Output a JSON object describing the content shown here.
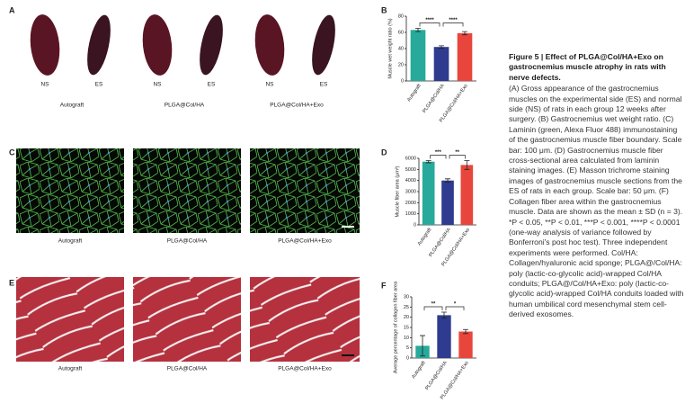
{
  "panel_labels": [
    "A",
    "B",
    "C",
    "D",
    "E",
    "F"
  ],
  "groups": [
    "Autograft",
    "PLGA@Col/HA",
    "PLGA@Col/HA+Exo"
  ],
  "side_labels": [
    "NS",
    "ES"
  ],
  "chart_data": [
    {
      "type": "bar",
      "y_label": "Muscle wet weight ratio (%)",
      "categories": [
        "Autograft",
        "PLGA@Col/HA",
        "PLGA@Col/HA+Exo"
      ],
      "values": [
        63,
        42,
        59
      ],
      "errors": [
        2,
        1.5,
        2
      ],
      "colors": [
        "#27a99b",
        "#2e3b8f",
        "#e8463d"
      ],
      "ylim": [
        0,
        80
      ],
      "yticks": [
        0,
        20,
        40,
        60,
        80
      ],
      "annotations": [
        "****",
        "****"
      ]
    },
    {
      "type": "bar",
      "y_label": "Muscle fiber area (μm²)",
      "categories": [
        "Autograft",
        "PLGA@Col/HA",
        "PLGA@Col/HA+Exo"
      ],
      "values": [
        5700,
        4000,
        5400
      ],
      "errors": [
        100,
        150,
        400
      ],
      "colors": [
        "#27a99b",
        "#2e3b8f",
        "#e8463d"
      ],
      "ylim": [
        0,
        6000
      ],
      "yticks": [
        0,
        1000,
        2000,
        3000,
        4000,
        5000,
        6000
      ],
      "annotations": [
        "***",
        "**"
      ]
    },
    {
      "type": "bar",
      "y_label": "Average percentage of collagen fiber area",
      "categories": [
        "Autograft",
        "PLGA@Col/HA",
        "PLGA@Col/HA+Exo"
      ],
      "values": [
        6,
        21,
        13
      ],
      "errors": [
        5,
        1.5,
        1
      ],
      "colors": [
        "#27a99b",
        "#2e3b8f",
        "#e8463d"
      ],
      "ylim": [
        0,
        30
      ],
      "yticks": [
        0,
        5,
        10,
        15,
        20,
        25,
        30
      ],
      "annotations": [
        "**",
        "*"
      ]
    }
  ],
  "caption": {
    "title": "Figure 5 | Effect of PLGA@Col/HA+Exo on gastrocnemius muscle atrophy in rats with nerve defects.",
    "body": "(A) Gross appearance of the gastrocnemius muscles on the experimental side (ES) and normal side (NS) of rats in each group 12 weeks after surgery. (B) Gastrocnemius wet weight ratio. (C) Laminin (green, Alexa Fluor 488) immunostaining of the gastrocnemius muscle fiber boundary. Scale bar: 100 μm. (D) Gastrocnemius muscle fiber cross-sectional area calculated from laminin staining images. (E) Masson trichrome staining images of gastrocnemius muscle sections from the ES of rats in each group. Scale bar: 50 μm. (F) Collagen fiber area within the gastrocnemius muscle. Data are shown as the mean ± SD (n = 3). *P < 0.05, **P < 0.01, ***P < 0.001, ****P < 0.0001 (one-way analysis of variance followed by Bonferroni's post hoc test). Three independent experiments were performed. Col/HA: Collagen/hyaluronic acid sponge; PLGA@/Col/HA: poly (lactic-co-glycolic acid)-wrapped Col/HA conduits; PLGA@/Col/HA+Exo: poly (lactic-co-glycolic acid)-wrapped Col/HA conduits loaded with human umbilical cord mesenchymal stem cell-derived exosomes."
  }
}
